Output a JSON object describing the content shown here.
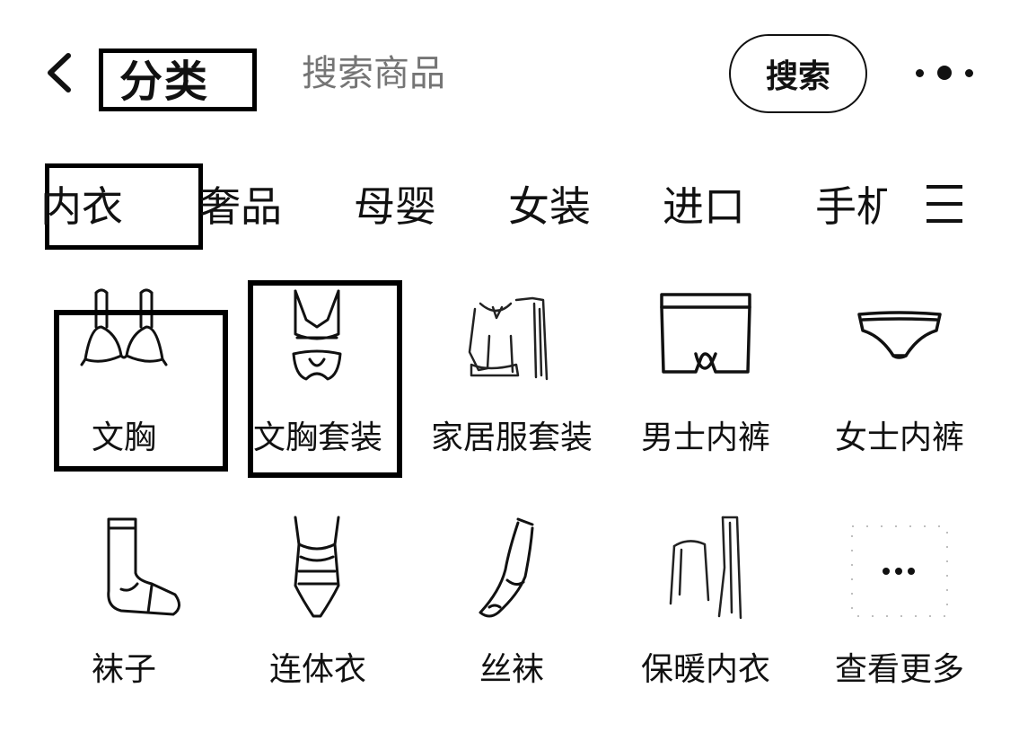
{
  "header": {
    "back_icon": "chevron-left-icon",
    "title": "分类",
    "search_placeholder": "搜索商品",
    "search_button": "搜索",
    "more_icon": "more-dots-icon"
  },
  "tabs": [
    {
      "label": "内衣",
      "active": true
    },
    {
      "label": "奢品"
    },
    {
      "label": "母婴"
    },
    {
      "label": "女装"
    },
    {
      "label": "进口"
    },
    {
      "label": "手机"
    }
  ],
  "menu_icon": "menu-icon",
  "categories": [
    {
      "label": "文胸",
      "icon": "bra-icon"
    },
    {
      "label": "文胸套装",
      "icon": "bra-set-icon"
    },
    {
      "label": "家居服套装",
      "icon": "loungewear-icon"
    },
    {
      "label": "男士内裤",
      "icon": "mens-underwear-icon"
    },
    {
      "label": "女士内裤",
      "icon": "womens-panties-icon"
    },
    {
      "label": "袜子",
      "icon": "socks-icon"
    },
    {
      "label": "连体衣",
      "icon": "bodysuit-icon"
    },
    {
      "label": "丝袜",
      "icon": "stockings-icon"
    },
    {
      "label": "保暖内衣",
      "icon": "thermal-underwear-icon"
    },
    {
      "label": "查看更多",
      "icon": "more-dots-icon"
    }
  ]
}
